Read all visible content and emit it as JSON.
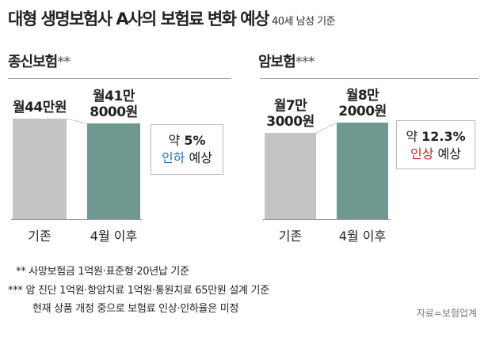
{
  "title": "대형 생명보험사 A사의 보험료 변화 예상",
  "subtitle": "40세 남성 기준",
  "chart_data": [
    {
      "type": "bar",
      "title": "종신보험",
      "title_mark": "**",
      "categories": [
        "기존",
        "4월 이후"
      ],
      "values": [
        440000,
        418000
      ],
      "value_labels": [
        [
          "월44만원"
        ],
        [
          "월41만",
          "8000원"
        ]
      ],
      "unit": "원/월",
      "callout": {
        "prefix": "약 ",
        "pct": "5%",
        "change": "인하",
        "suffix": " 예상",
        "color": "#1f6db3"
      }
    },
    {
      "type": "bar",
      "title": "암보험",
      "title_mark": "***",
      "categories": [
        "기존",
        "4월 이후"
      ],
      "values": [
        73000,
        82000
      ],
      "value_labels": [
        [
          "월7만",
          "3000원"
        ],
        [
          "월8만",
          "2000원"
        ]
      ],
      "unit": "원/월",
      "callout": {
        "prefix": "약 ",
        "pct": "12.3%",
        "change": "인상",
        "suffix": " 예상",
        "color": "#c0272d"
      }
    }
  ],
  "colors": {
    "before": "#c4c4c4",
    "after": "#6f9891"
  },
  "footnotes": [
    {
      "mark": "**",
      "text": "사망보험금 1억원·표준형·20년납 기준"
    },
    {
      "mark": "***",
      "text": "암 진단 1억원·항암치료 1억원·통원치료 65만원 설계 기준"
    },
    {
      "mark": "",
      "text": "현재 상품 개정 중으로 보험료 인상·인하율은 미정"
    }
  ],
  "source": "자료=보험업계"
}
